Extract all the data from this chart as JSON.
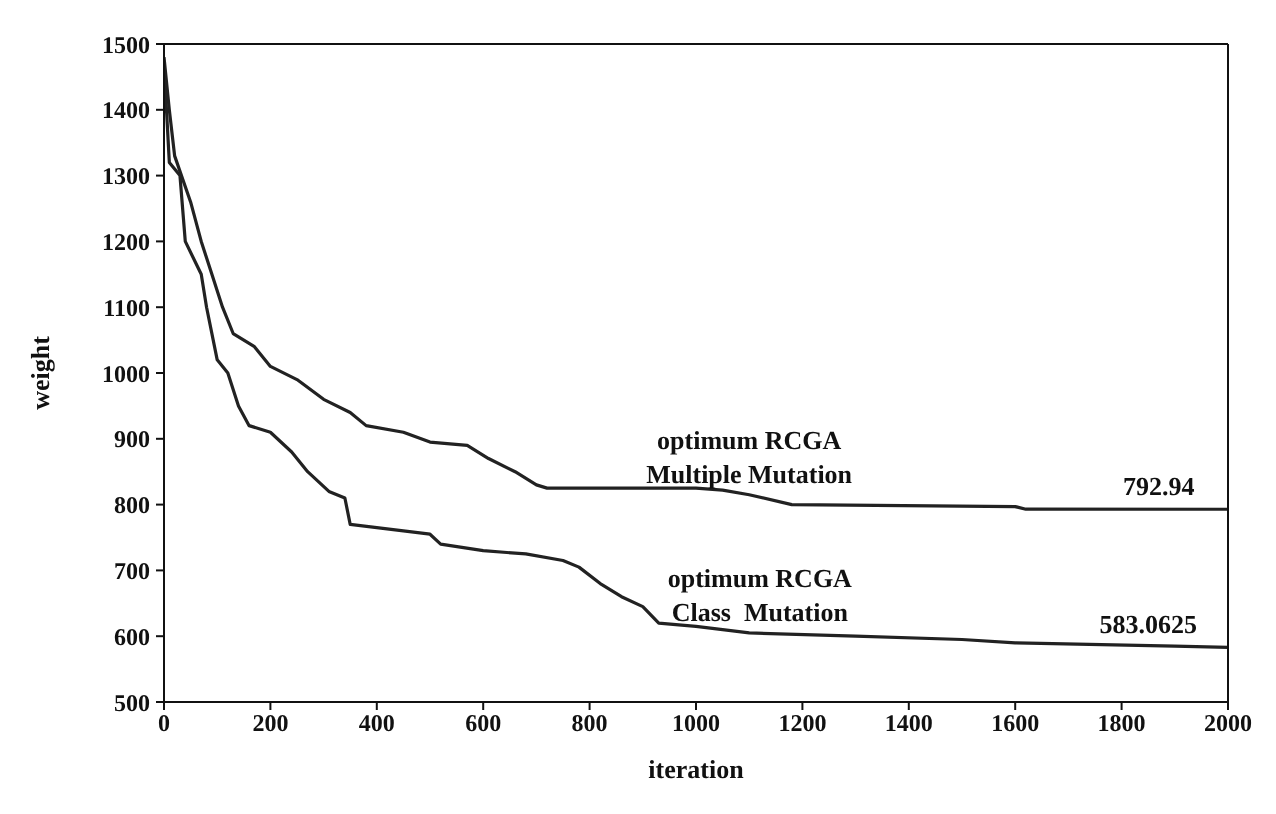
{
  "chart_data": {
    "type": "line",
    "xlabel": "iteration",
    "ylabel": "weight",
    "xlim": [
      0,
      2000
    ],
    "ylim": [
      500,
      1500
    ],
    "xticks": [
      0,
      200,
      400,
      600,
      800,
      1000,
      1200,
      1400,
      1600,
      1800,
      2000
    ],
    "yticks": [
      500,
      600,
      700,
      800,
      900,
      1000,
      1100,
      1200,
      1300,
      1400,
      1500
    ],
    "marker": "none",
    "line_style": "solid",
    "series": [
      {
        "name": "optimum RCGA\nMultiple Mutation",
        "color": "#222222",
        "x": [
          0,
          10,
          20,
          50,
          70,
          90,
          110,
          130,
          170,
          200,
          250,
          300,
          350,
          380,
          450,
          500,
          570,
          610,
          660,
          700,
          720,
          1000,
          1050,
          1100,
          1180,
          1600,
          1620,
          2000
        ],
        "values": [
          1480,
          1400,
          1330,
          1260,
          1200,
          1150,
          1100,
          1060,
          1040,
          1010,
          990,
          960,
          940,
          920,
          910,
          895,
          890,
          870,
          850,
          830,
          825,
          825,
          822,
          815,
          800,
          797,
          793,
          792.94
        ]
      },
      {
        "name": "optimum RCGA\nClass  Mutation",
        "color": "#222222",
        "x": [
          0,
          10,
          30,
          40,
          70,
          80,
          100,
          120,
          140,
          160,
          200,
          240,
          270,
          310,
          340,
          350,
          450,
          500,
          520,
          600,
          680,
          750,
          780,
          820,
          860,
          900,
          930,
          1000,
          1100,
          1300,
          1500,
          1600,
          1900,
          2000
        ],
        "values": [
          1470,
          1320,
          1300,
          1200,
          1150,
          1100,
          1020,
          1000,
          950,
          920,
          910,
          880,
          850,
          820,
          810,
          770,
          760,
          755,
          740,
          730,
          725,
          715,
          705,
          680,
          660,
          645,
          620,
          615,
          605,
          600,
          595,
          590,
          585,
          583.0625
        ]
      }
    ],
    "annotations": [
      {
        "text": "792.94",
        "x": 1870,
        "y": 792.94
      },
      {
        "text": "583.0625",
        "x": 1850,
        "y": 583.0625
      }
    ]
  }
}
